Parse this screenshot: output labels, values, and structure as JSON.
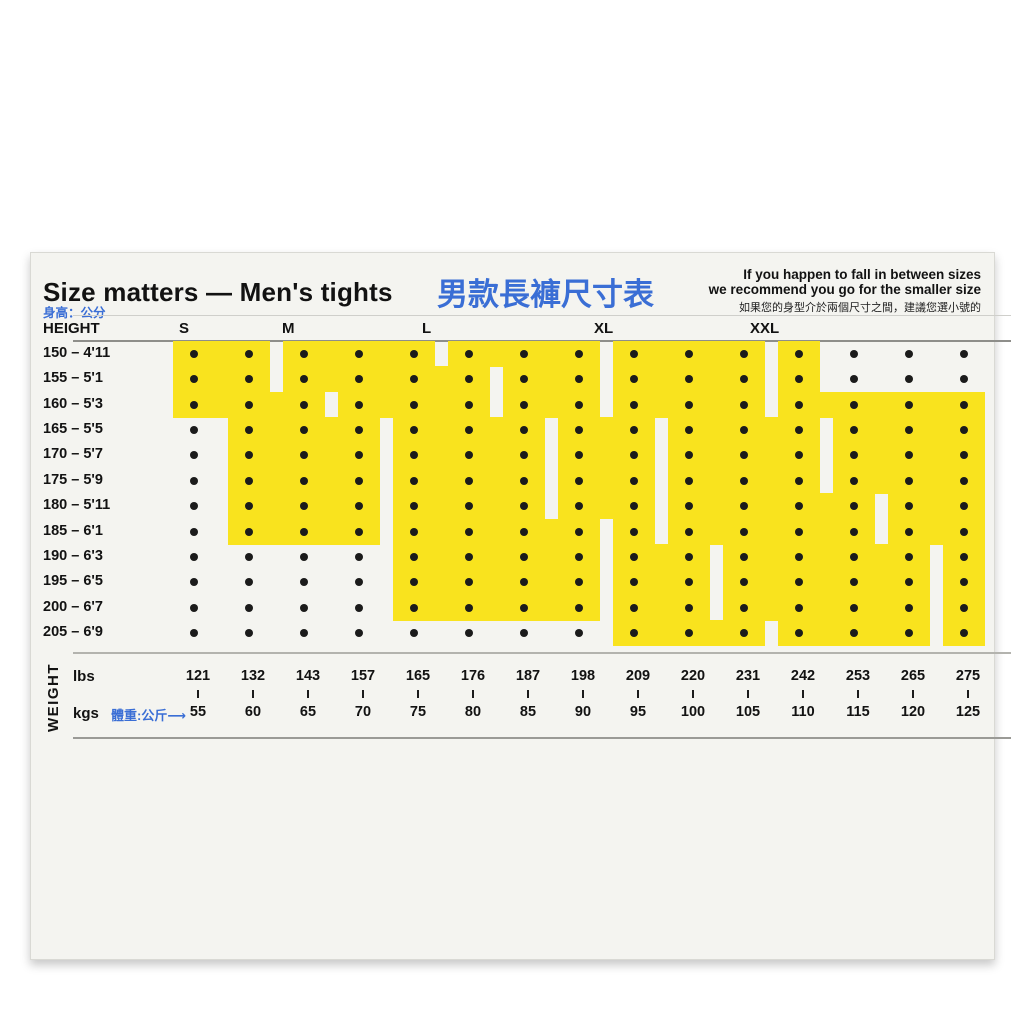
{
  "colors": {
    "yellow": "#F9E31E",
    "accent_blue": "#3A6ED5",
    "ink": "#121212",
    "card_background": "#F4F4F0",
    "dot": "#1B1B1B"
  },
  "header": {
    "title": "Size matters — Men's tights",
    "title_zh": "男款長褲尺寸表",
    "height_unit_note": "身高：公分",
    "fit_note_line1": "If you happen to fall in between sizes",
    "fit_note_line2": "we recommend you go for the smaller size",
    "fit_note_zh": "如果您的身型介於兩個尺寸之間，建議您選小號的"
  },
  "table": {
    "height_column_label": "HEIGHT",
    "size_labels": [
      "S",
      "M",
      "L",
      "XL",
      "XXL"
    ]
  },
  "footer": {
    "weight_label": "WEIGHT",
    "lbs_label": "lbs",
    "kgs_label": "kgs",
    "kg_note_zh": "體重:公斤⟶"
  },
  "chart_data": {
    "type": "table",
    "title": "Size matters — Men's tights (weight kg ranges per height)",
    "heights": [
      "150 – 4'11",
      "155 – 5'1",
      "160 – 5'3",
      "165 – 5'5",
      "170 – 5'7",
      "175 – 5'9",
      "180 – 5'11",
      "185 – 6'1",
      "190 – 6'3",
      "195 – 6'5",
      "200 – 6'7",
      "205 – 6'9"
    ],
    "weights_kg": [
      55,
      60,
      65,
      70,
      75,
      80,
      85,
      90,
      95,
      100,
      105,
      110,
      115,
      120,
      125
    ],
    "weights_lbs": [
      121,
      132,
      143,
      157,
      165,
      176,
      187,
      198,
      209,
      220,
      231,
      242,
      253,
      265,
      275
    ],
    "sizes": [
      {
        "name": "S",
        "kg_range_by_height": [
          [
            55,
            60
          ],
          [
            55,
            60
          ],
          [
            55,
            65
          ],
          [
            60,
            70
          ],
          [
            60,
            70
          ],
          [
            60,
            70
          ],
          [
            60,
            70
          ],
          [
            60,
            70
          ],
          null,
          null,
          null,
          null
        ]
      },
      {
        "name": "M",
        "kg_range_by_height": [
          [
            65,
            75
          ],
          [
            65,
            80
          ],
          [
            70,
            80
          ],
          [
            75,
            85
          ],
          [
            75,
            85
          ],
          [
            75,
            85
          ],
          [
            75,
            85
          ],
          [
            75,
            90
          ],
          [
            75,
            90
          ],
          [
            75,
            90
          ],
          [
            75,
            90
          ],
          null
        ]
      },
      {
        "name": "L",
        "kg_range_by_height": [
          [
            80,
            90
          ],
          [
            85,
            90
          ],
          [
            85,
            90
          ],
          [
            90,
            95
          ],
          [
            90,
            95
          ],
          [
            90,
            95
          ],
          [
            90,
            95
          ],
          [
            95,
            95
          ],
          [
            95,
            100
          ],
          [
            95,
            100
          ],
          [
            95,
            100
          ],
          [
            95,
            105
          ]
        ]
      },
      {
        "name": "XL",
        "kg_range_by_height": [
          [
            95,
            105
          ],
          [
            95,
            105
          ],
          [
            95,
            105
          ],
          [
            100,
            110
          ],
          [
            100,
            110
          ],
          [
            100,
            110
          ],
          [
            100,
            115
          ],
          [
            100,
            115
          ],
          [
            105,
            120
          ],
          [
            105,
            120
          ],
          [
            105,
            120
          ],
          [
            110,
            120
          ]
        ]
      },
      {
        "name": "XXL",
        "kg_range_by_height": [
          [
            110,
            110
          ],
          [
            110,
            110
          ],
          [
            110,
            125
          ],
          [
            115,
            125
          ],
          [
            115,
            125
          ],
          [
            115,
            125
          ],
          [
            120,
            125
          ],
          [
            120,
            125
          ],
          [
            125,
            125
          ],
          [
            125,
            125
          ],
          [
            125,
            125
          ],
          [
            125,
            125
          ]
        ]
      }
    ]
  }
}
